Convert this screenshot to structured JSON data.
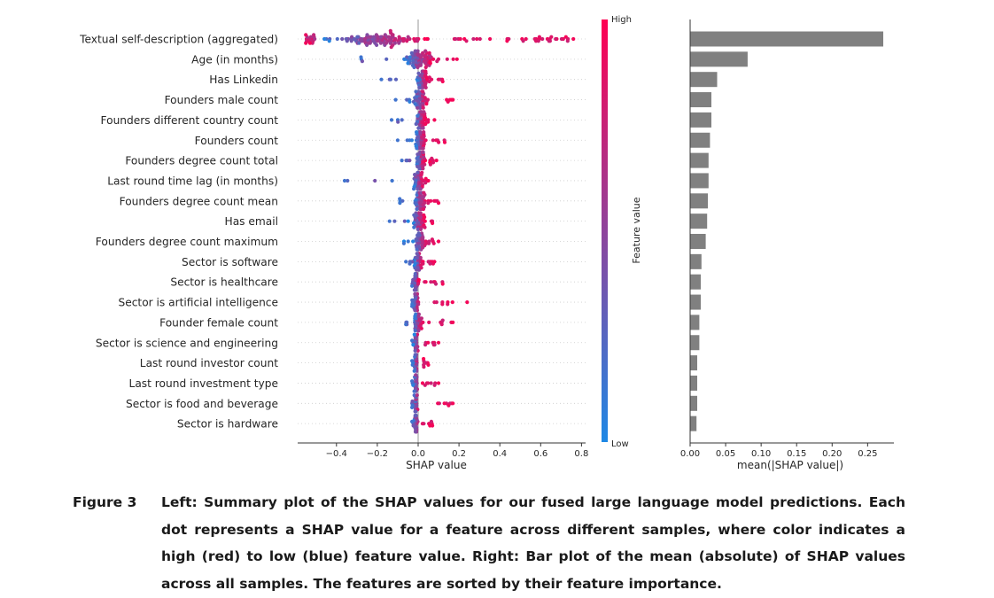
{
  "figure": {
    "left_chart": {
      "type": "scatter",
      "title": "",
      "xlabel": "SHAP value",
      "xlim": [
        -0.59,
        0.82
      ],
      "xticks": [
        -0.4,
        -0.2,
        0.0,
        0.2,
        0.4,
        0.6,
        0.8
      ],
      "xtick_labels": [
        "−0.4",
        "−0.2",
        "0.0",
        "0.2",
        "0.4",
        "0.6",
        "0.8"
      ],
      "colorbar": {
        "label": "Feature value",
        "high_label": "High",
        "low_label": "Low",
        "low_color": "#1e88e5",
        "high_color": "#ff0052"
      },
      "features": [
        {
          "label": "Textual self-description (aggregated)",
          "center": -0.2,
          "spread": 0.3,
          "pos_min": 0.15,
          "pos_max": 0.76,
          "neg_min": -0.55
        },
        {
          "label": "Age (in months)",
          "center": 0.0,
          "spread": 0.08,
          "pos_min": 0.03,
          "pos_max": 0.19,
          "neg_min": -0.28
        },
        {
          "label": "Has Linkedin",
          "center": 0.02,
          "spread": 0.03,
          "pos_min": 0.02,
          "pos_max": 0.12,
          "neg_min": -0.18
        },
        {
          "label": "Founders male count",
          "center": 0.01,
          "spread": 0.04,
          "pos_min": 0.02,
          "pos_max": 0.17,
          "neg_min": -0.11
        },
        {
          "label": "Founders different country count",
          "center": 0.01,
          "spread": 0.03,
          "pos_min": 0.02,
          "pos_max": 0.08,
          "neg_min": -0.13
        },
        {
          "label": "Founders count",
          "center": 0.01,
          "spread": 0.03,
          "pos_min": 0.02,
          "pos_max": 0.13,
          "neg_min": -0.1
        },
        {
          "label": "Founders degree count total",
          "center": 0.01,
          "spread": 0.03,
          "pos_min": 0.02,
          "pos_max": 0.09,
          "neg_min": -0.08
        },
        {
          "label": "Last round time lag (in months)",
          "center": 0.0,
          "spread": 0.03,
          "pos_min": 0.01,
          "pos_max": 0.05,
          "neg_min": -0.36
        },
        {
          "label": "Founders degree count mean",
          "center": 0.01,
          "spread": 0.03,
          "pos_min": 0.02,
          "pos_max": 0.1,
          "neg_min": -0.09
        },
        {
          "label": "Has email",
          "center": 0.0,
          "spread": 0.03,
          "pos_min": 0.02,
          "pos_max": 0.07,
          "neg_min": -0.14
        },
        {
          "label": "Founders degree count maximum",
          "center": 0.01,
          "spread": 0.03,
          "pos_min": 0.02,
          "pos_max": 0.1,
          "neg_min": -0.07
        },
        {
          "label": "Sector is software",
          "center": 0.0,
          "spread": 0.025,
          "pos_min": 0.02,
          "pos_max": 0.08,
          "neg_min": -0.06
        },
        {
          "label": "Sector is healthcare",
          "center": -0.01,
          "spread": 0.015,
          "pos_min": 0.03,
          "pos_max": 0.12,
          "neg_min": -0.03
        },
        {
          "label": "Sector is artificial intelligence",
          "center": -0.01,
          "spread": 0.015,
          "pos_min": 0.03,
          "pos_max": 0.24,
          "neg_min": -0.03
        },
        {
          "label": "Founder female count",
          "center": 0.0,
          "spread": 0.025,
          "pos_min": 0.01,
          "pos_max": 0.17,
          "neg_min": -0.06
        },
        {
          "label": "Sector is science and engineering",
          "center": -0.01,
          "spread": 0.012,
          "pos_min": 0.03,
          "pos_max": 0.1,
          "neg_min": -0.03
        },
        {
          "label": "Last round investor count",
          "center": -0.01,
          "spread": 0.012,
          "pos_min": 0.02,
          "pos_max": 0.05,
          "neg_min": -0.03
        },
        {
          "label": "Last round investment type",
          "center": -0.01,
          "spread": 0.012,
          "pos_min": 0.02,
          "pos_max": 0.1,
          "neg_min": -0.03
        },
        {
          "label": "Sector is food and beverage",
          "center": -0.01,
          "spread": 0.012,
          "pos_min": 0.04,
          "pos_max": 0.17,
          "neg_min": -0.03
        },
        {
          "label": "Sector is hardware",
          "center": -0.01,
          "spread": 0.012,
          "pos_min": 0.02,
          "pos_max": 0.07,
          "neg_min": -0.03
        }
      ]
    },
    "right_chart": {
      "type": "bar",
      "title": "",
      "xlabel": "mean(|SHAP value|)",
      "xlim": [
        0,
        0.287
      ],
      "xticks": [
        0.0,
        0.05,
        0.1,
        0.15,
        0.2,
        0.25
      ],
      "xtick_labels": [
        "0.00",
        "0.05",
        "0.10",
        "0.15",
        "0.20",
        "0.25"
      ],
      "bar_color": "#808080",
      "values": [
        0.272,
        0.081,
        0.038,
        0.03,
        0.03,
        0.028,
        0.026,
        0.026,
        0.025,
        0.024,
        0.022,
        0.016,
        0.015,
        0.015,
        0.013,
        0.013,
        0.01,
        0.01,
        0.01,
        0.009
      ]
    }
  },
  "caption": {
    "label": "Figure 3",
    "text": "Left: Summary plot of the SHAP values for our fused large language model predictions. Each dot represents a SHAP value for a feature across different samples, where color indicates a high (red) to low (blue) feature value. Right: Bar plot of the mean (absolute) of SHAP values across all samples. The features are sorted by their feature importance."
  }
}
